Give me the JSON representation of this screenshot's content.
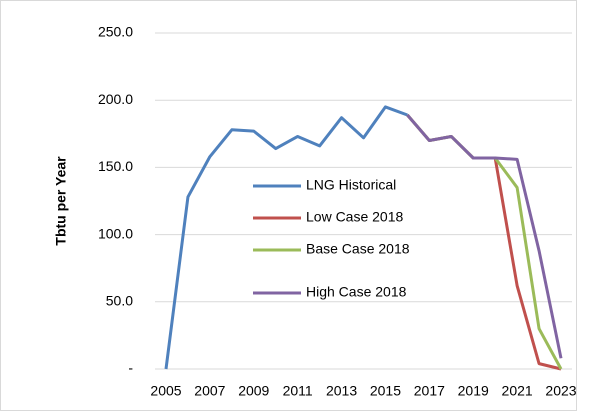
{
  "chart_data": {
    "type": "line",
    "y_label": "Tbtu per Year",
    "categories": [
      "2005",
      null,
      "2007",
      null,
      "2009",
      null,
      "2011",
      null,
      "2013",
      null,
      "2015",
      null,
      "2017",
      null,
      "2019",
      null,
      "2021",
      null,
      "2023"
    ],
    "series": [
      {
        "name": "LNG Historical",
        "color": "#4f81bd",
        "values": [
          0,
          128,
          158,
          178,
          177,
          164,
          173,
          166,
          187,
          172,
          195,
          189,
          null,
          null,
          null,
          null,
          null,
          null,
          null
        ]
      },
      {
        "name": "Low Case 2018",
        "color": "#c0504d",
        "values": [
          null,
          null,
          null,
          null,
          null,
          null,
          null,
          null,
          null,
          null,
          null,
          189,
          170,
          173,
          157,
          157,
          62,
          4,
          0
        ]
      },
      {
        "name": "Base Case 2018",
        "color": "#9bbb59",
        "values": [
          null,
          null,
          null,
          null,
          null,
          null,
          null,
          null,
          null,
          null,
          null,
          189,
          170,
          173,
          157,
          157,
          135,
          30,
          0
        ]
      },
      {
        "name": "High Case 2018",
        "color": "#8064a2",
        "values": [
          null,
          null,
          null,
          null,
          null,
          null,
          null,
          null,
          null,
          null,
          null,
          189,
          170,
          173,
          157,
          157,
          156,
          88,
          8
        ]
      }
    ],
    "ylim": [
      0,
      250
    ],
    "yticks": [
      {
        "value": 0,
        "label": "-"
      },
      {
        "value": 50,
        "label": "50.0"
      },
      {
        "value": 100,
        "label": "100.0"
      },
      {
        "value": 150,
        "label": "150.0"
      },
      {
        "value": 200,
        "label": "200.0"
      },
      {
        "value": 250,
        "label": "250.0"
      }
    ],
    "grid": true
  }
}
